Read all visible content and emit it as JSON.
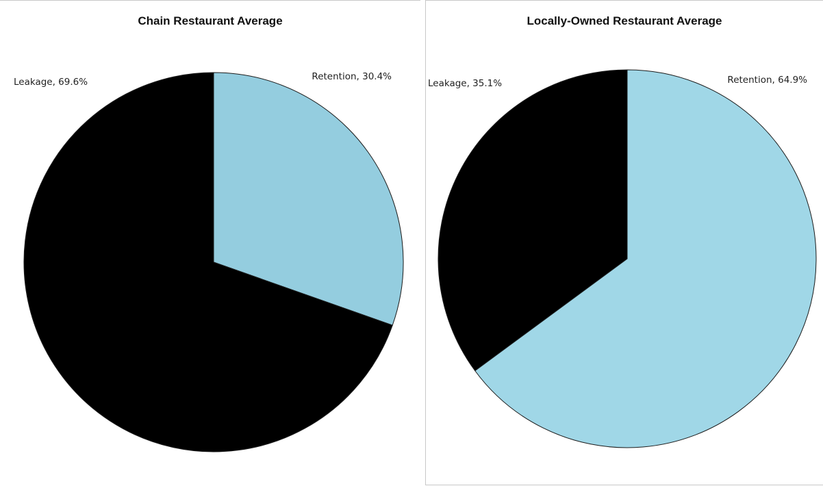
{
  "chart_data": [
    {
      "type": "pie",
      "title": "Chain Restaurant Average",
      "start_angle_deg": 0,
      "direction": "clockwise",
      "slices": [
        {
          "label": "Retention",
          "value": 30.4,
          "label_text": "Retention, 30.4%",
          "color": "#94cddf"
        },
        {
          "label": "Leakage",
          "value": 69.6,
          "label_text": "Leakage, 69.6%",
          "color": "#000000"
        }
      ],
      "legend": "none",
      "data_labels": "outside"
    },
    {
      "type": "pie",
      "title": "Locally-Owned Restaurant Average",
      "start_angle_deg": 0,
      "direction": "clockwise",
      "slices": [
        {
          "label": "Retention",
          "value": 64.9,
          "label_text": "Retention, 64.9%",
          "color": "#a0d7e7"
        },
        {
          "label": "Leakage",
          "value": 35.1,
          "label_text": "Leakage, 35.1%",
          "color": "#000000"
        }
      ],
      "legend": "none",
      "data_labels": "outside"
    }
  ]
}
